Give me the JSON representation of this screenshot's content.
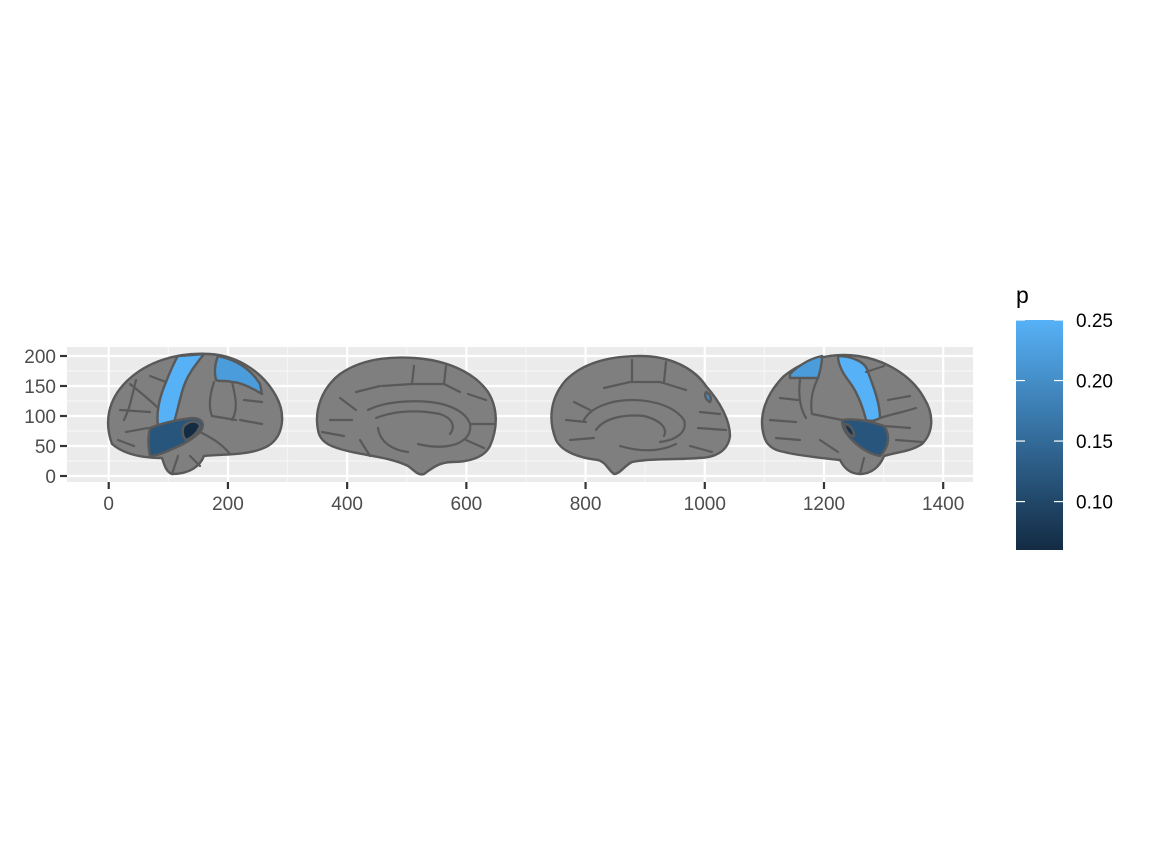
{
  "chart_data": {
    "type": "heatmap",
    "title": "",
    "xlabel": "",
    "ylabel": "",
    "xlim": [
      -70,
      1450
    ],
    "ylim": [
      -10,
      215
    ],
    "x_ticks": [
      0,
      200,
      400,
      600,
      800,
      1000,
      1200,
      1400
    ],
    "x_tick_labels": [
      "0",
      "200",
      "400",
      "600",
      "800",
      "1000",
      "1200",
      "1400"
    ],
    "y_ticks": [
      0,
      50,
      100,
      150,
      200
    ],
    "y_tick_labels": [
      "0",
      "50",
      "100",
      "150",
      "200"
    ],
    "grid": true,
    "panel_background": "#ebebeb",
    "na_fill": "#7f7f7f",
    "outline_color": "#595959",
    "views": [
      "left lateral",
      "left medial",
      "right medial",
      "right lateral"
    ],
    "regions": [
      {
        "name": "lh precentral",
        "view": "left lateral",
        "p": 0.25
      },
      {
        "name": "lh postcentral",
        "view": "left lateral",
        "p": 0.22
      },
      {
        "name": "lh superior temporal",
        "view": "left lateral",
        "p": 0.12
      },
      {
        "name": "lh transverse temporal",
        "view": "left lateral",
        "p": 0.06
      },
      {
        "name": "rh precentral",
        "view": "right lateral",
        "p": 0.25
      },
      {
        "name": "rh postcentral",
        "view": "right lateral",
        "p": 0.22
      },
      {
        "name": "rh superior temporal",
        "view": "right lateral",
        "p": 0.12
      },
      {
        "name": "rh transverse temporal",
        "view": "right lateral",
        "p": 0.07
      },
      {
        "name": "rh superior temporal medial edge",
        "view": "right medial",
        "p": 0.2
      }
    ],
    "legend": {
      "title": "p",
      "position": "right",
      "min": 0.06,
      "max": 0.25,
      "color_low": "#132b43",
      "color_high": "#56b1f7",
      "breaks": [
        0.1,
        0.15,
        0.2,
        0.25
      ],
      "labels": [
        "0.10",
        "0.15",
        "0.20",
        "0.25"
      ]
    }
  }
}
